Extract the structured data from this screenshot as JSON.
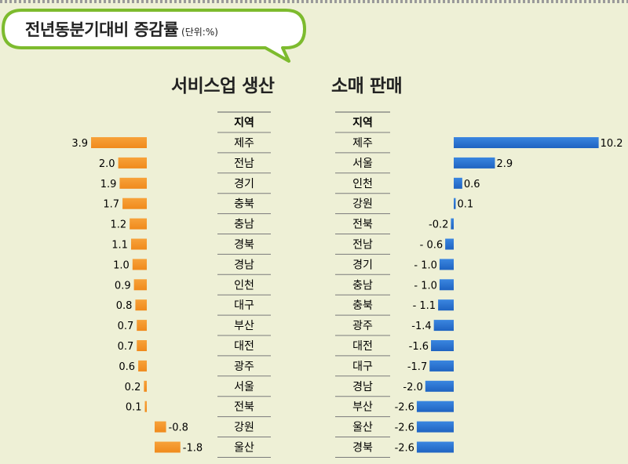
{
  "header": {
    "title": "전년동분기대비 증감률",
    "unit": "(단위:%)"
  },
  "colors": {
    "background": "#eef0d6",
    "bubble_border": "#7dbb2e",
    "service_bar": "#f08a1c",
    "retail_bar": "#1f63c1",
    "row_line": "#7a7a7a"
  },
  "chart_data": [
    {
      "type": "bar",
      "title": "서비스업 생산",
      "column_header": "지역",
      "categories": [
        "제주",
        "전남",
        "경기",
        "충북",
        "충남",
        "경북",
        "경남",
        "인천",
        "대구",
        "부산",
        "대전",
        "광주",
        "서울",
        "전북",
        "강원",
        "울산"
      ],
      "values": [
        3.9,
        2.0,
        1.9,
        1.7,
        1.2,
        1.1,
        1.0,
        0.9,
        0.8,
        0.7,
        0.7,
        0.6,
        0.2,
        0.1,
        -0.8,
        -1.8
      ],
      "value_labels": [
        "3.9",
        "2.0",
        "1.9",
        "1.7",
        "1.2",
        "1.1",
        "1.0",
        "0.9",
        "0.8",
        "0.7",
        "0.7",
        "0.6",
        "0.2",
        "0.1",
        "-0.8",
        "-1.8"
      ],
      "orientation": "horizontal",
      "bar_direction": "positive values extend left"
    },
    {
      "type": "bar",
      "title": "소매 판매",
      "column_header": "지역",
      "categories": [
        "제주",
        "서울",
        "인천",
        "강원",
        "전북",
        "전남",
        "경기",
        "충남",
        "충북",
        "광주",
        "대전",
        "대구",
        "경남",
        "부산",
        "울산",
        "경북"
      ],
      "values": [
        10.2,
        2.9,
        0.6,
        0.1,
        -0.2,
        -0.6,
        -1.0,
        -1.0,
        -1.1,
        -1.4,
        -1.6,
        -1.7,
        -2.0,
        -2.6,
        -2.6,
        -2.6
      ],
      "value_labels": [
        "10.2",
        "2.9",
        "0.6",
        "0.1",
        "-0.2",
        "- 0.6",
        "- 1.0",
        "- 1.0",
        "- 1.1",
        "-1.4",
        "-1.6",
        "-1.7",
        "-2.0",
        "-2.6",
        "-2.6",
        "-2.6"
      ],
      "orientation": "horizontal",
      "bar_direction": "positive values extend right"
    }
  ]
}
